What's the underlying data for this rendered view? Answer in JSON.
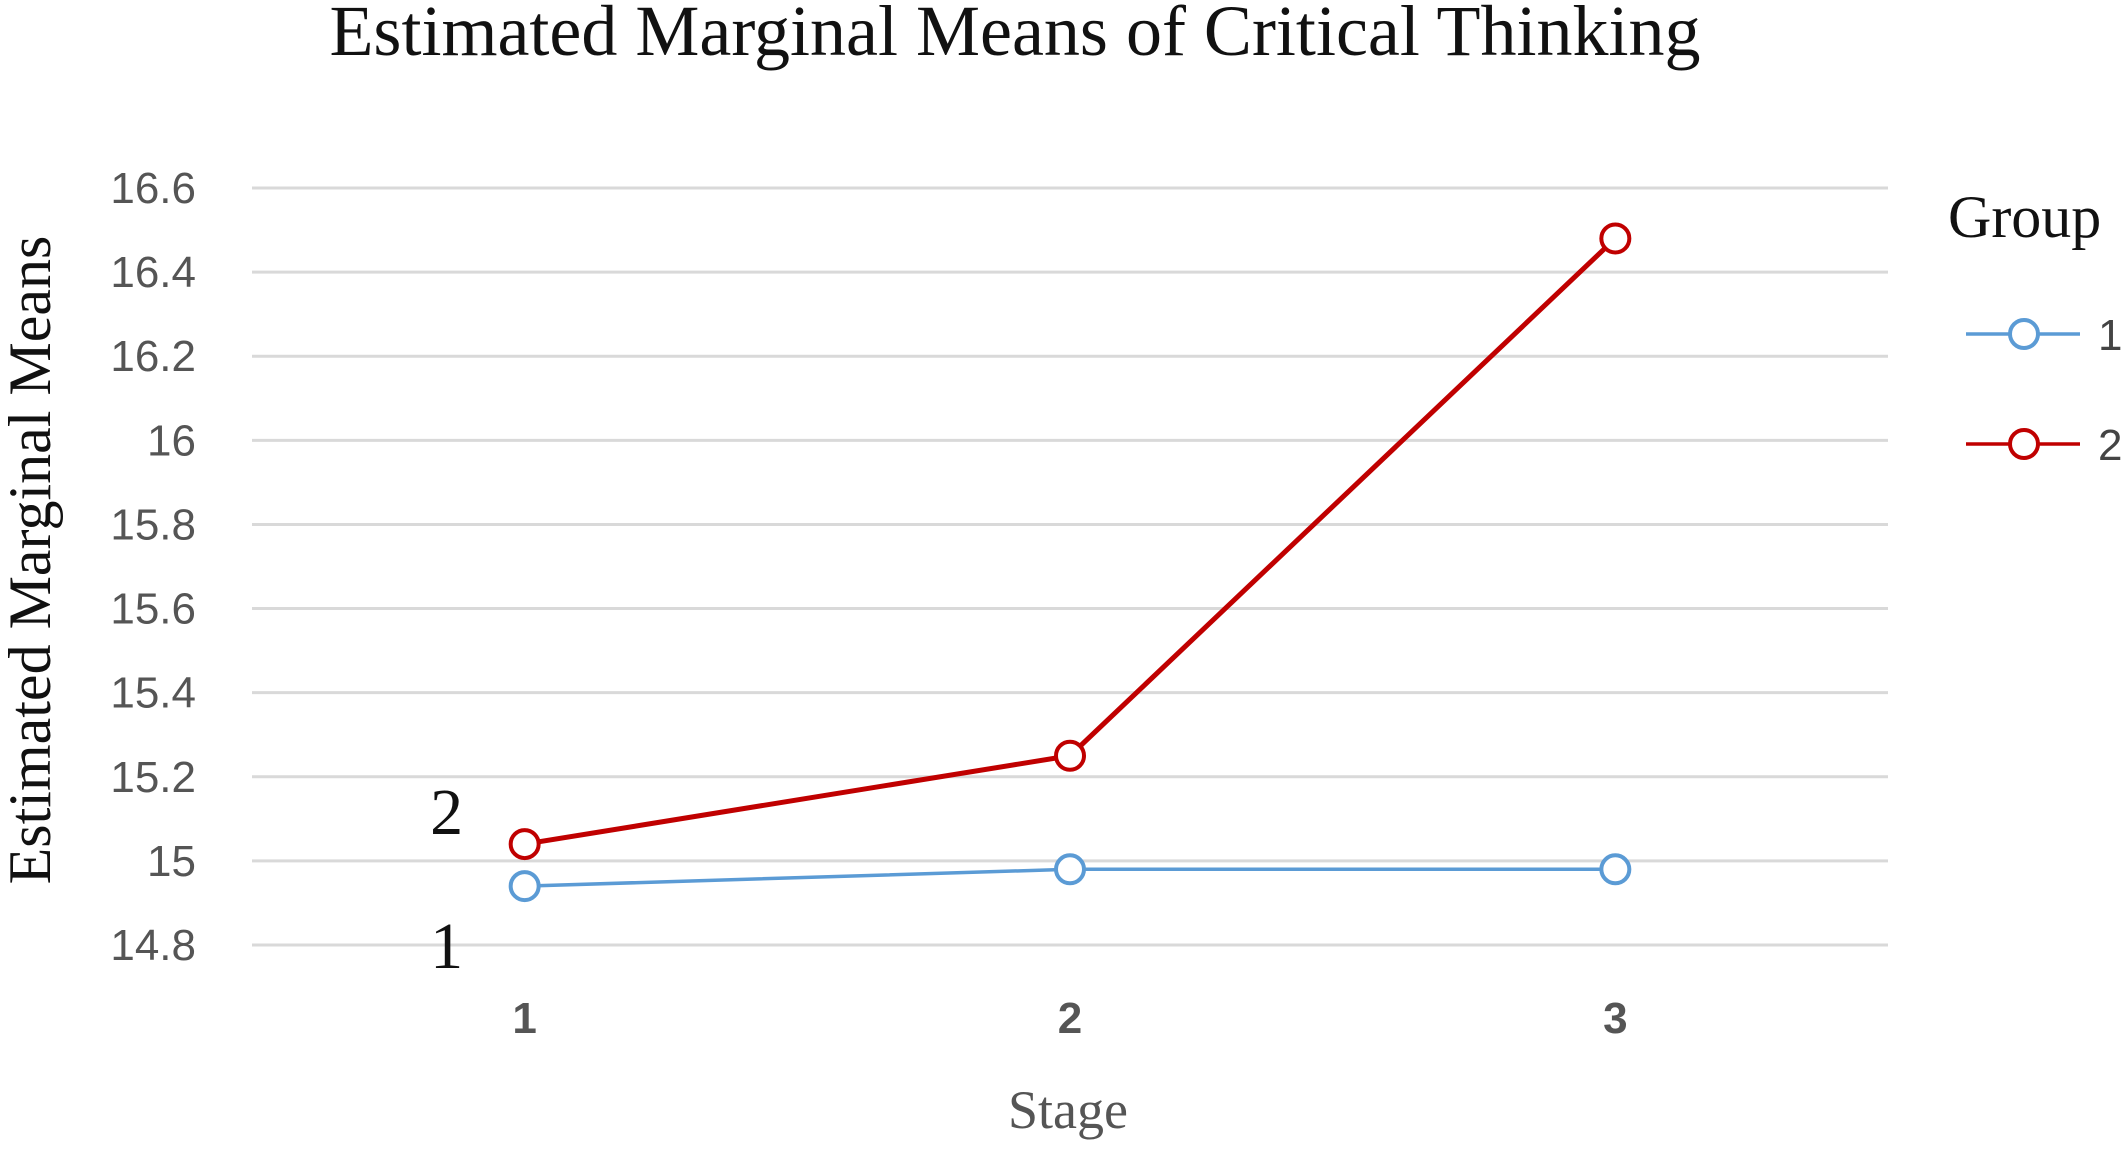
{
  "chart_data": {
    "type": "line",
    "title": "Estimated Marginal Means of Critical Thinking",
    "xlabel": "Stage",
    "ylabel": "Estimated Marginal Means",
    "categories": [
      "1",
      "2",
      "3"
    ],
    "ylim": [
      14.8,
      16.6
    ],
    "yticks": [
      "16.6",
      "16.4",
      "16.2",
      "16",
      "15.8",
      "15.6",
      "15.4",
      "15.2",
      "15",
      "14.8"
    ],
    "grid": true,
    "legend": {
      "title": "Group",
      "position": "right"
    },
    "series": [
      {
        "name": "1",
        "color": "#5b9bd5",
        "values": [
          14.94,
          14.98,
          14.98
        ]
      },
      {
        "name": "2",
        "color": "#c00000",
        "values": [
          15.04,
          15.25,
          16.48
        ]
      }
    ],
    "annotations": [
      {
        "text": "2",
        "series": "2",
        "category": "1"
      },
      {
        "text": "1",
        "series": "1",
        "category": "1"
      }
    ]
  }
}
